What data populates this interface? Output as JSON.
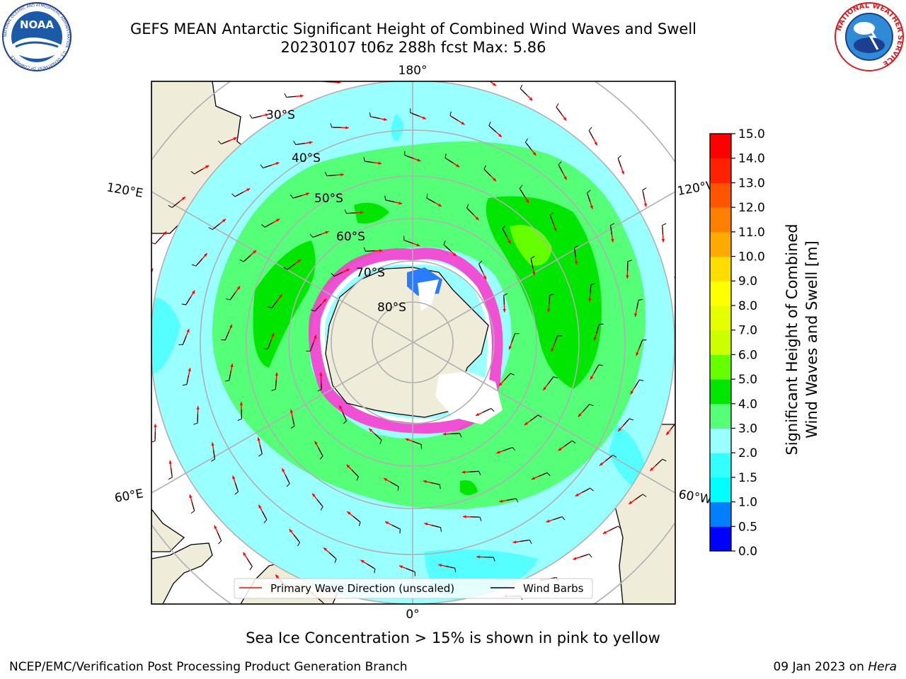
{
  "header": {
    "title_line1": "GEFS MEAN Antarctic Significant Height of Combined Wind Waves and Swell",
    "title_line2": "20230107 t06z 288h fcst   Max: 5.86"
  },
  "logos": {
    "left": {
      "icon": "noaa-logo-icon",
      "text": "NOAA",
      "ring_text": "NATIONAL OCEANIC AND ATMOSPHERIC ADMINISTRATION · U.S. DEPARTMENT OF COMMERCE"
    },
    "right": {
      "icon": "nws-logo-icon",
      "ring_text": "NATIONAL WEATHER SERVICE"
    }
  },
  "map": {
    "projection": "south-polar-stereographic",
    "longitude_labels": {
      "top": "180°",
      "bottom": "0°",
      "left_upper": "120°E",
      "left_lower": "60°E",
      "right_upper": "120°W",
      "right_lower": "60°W"
    },
    "latitude_labels": [
      "30°S",
      "40°S",
      "50°S",
      "60°S",
      "70°S",
      "80°S"
    ],
    "colors": {
      "land": "#efedda",
      "ocean_low": "#99ffff",
      "ocean_mid": "#55ff77",
      "ocean_high": "#00e600",
      "ice": "#ff33cc",
      "grid": "#b0b0b0"
    },
    "legend": {
      "primary_wave": "Primary Wave Direction (unscaled)",
      "wind_barbs": "Wind Barbs"
    }
  },
  "colorbar": {
    "label_line1": "Significant Height of Combined",
    "label_line2": "Wind Waves and Swell [m]",
    "ticks": [
      "0.0",
      "0.5",
      "1.0",
      "1.5",
      "2.0",
      "3.0",
      "4.0",
      "5.0",
      "6.0",
      "7.0",
      "8.0",
      "9.0",
      "10.0",
      "11.0",
      "12.0",
      "13.0",
      "14.0",
      "15.0"
    ],
    "colors": [
      "#0000ff",
      "#0080ff",
      "#00ffff",
      "#33ffff",
      "#99ffff",
      "#55ff77",
      "#00e600",
      "#66ff00",
      "#ccff00",
      "#e6ff00",
      "#ffff00",
      "#ffdd00",
      "#ffaa00",
      "#ff8000",
      "#ff5500",
      "#ff2200",
      "#ff0000"
    ]
  },
  "caption": "Sea Ice Concentration > 15% is shown in pink to yellow",
  "footer": {
    "left": "NCEP/EMC/Verification Post Processing Product Generation Branch",
    "right_date": "09 Jan 2023 on ",
    "right_machine": "Hera"
  }
}
